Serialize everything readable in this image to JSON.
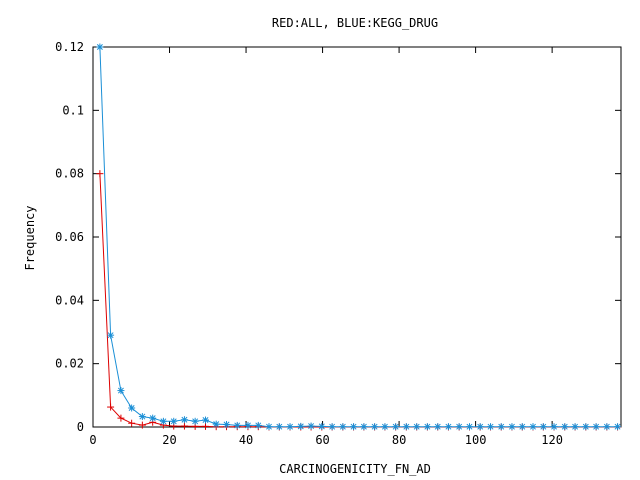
{
  "chart_data": {
    "type": "line",
    "title": "RED:ALL, BLUE:KEGG_DRUG",
    "xlabel": "CARCINOGENICITY_FN_AD",
    "ylabel": "Frequency",
    "xlim": [
      0,
      138
    ],
    "ylim": [
      0,
      0.12
    ],
    "x_ticks": [
      0,
      20,
      40,
      60,
      80,
      100,
      120
    ],
    "y_ticks": [
      0,
      0.02,
      0.04,
      0.06,
      0.08,
      0.1,
      0.12
    ],
    "x_tick_labels": [
      "0",
      "20",
      "40",
      "60",
      "80",
      "100",
      "120"
    ],
    "y_tick_labels": [
      "0",
      "0.02",
      "0.04",
      "0.06",
      "0.08",
      "0.1",
      "0.12"
    ],
    "series": [
      {
        "color": "#dd0000",
        "marker": "plus",
        "x": [
          1.8,
          4.6,
          7.3,
          10.1,
          12.9,
          15.6,
          18.4,
          21.1,
          23.9,
          26.7,
          29.4,
          32.2,
          34.9,
          37.7,
          40.5,
          43.2,
          46.0,
          48.7,
          51.5,
          54.3,
          57.0,
          59.8,
          62.5,
          65.3,
          68.1,
          70.8,
          73.6,
          76.3,
          79.1,
          81.9,
          84.6,
          87.4,
          90.1,
          92.9,
          95.7,
          98.4,
          101.2,
          103.9,
          106.7,
          109.5,
          112.2,
          115.0,
          117.7,
          120.5,
          123.3,
          126.0,
          128.8,
          131.5,
          134.3,
          137.1
        ],
        "values": [
          0.08,
          0.0063,
          0.0028,
          0.0012,
          0.0006,
          0.0015,
          0.0006,
          0.0003,
          0.0003,
          0.0002,
          0.0002,
          0.0001,
          0.0001,
          0.0001,
          0.0001,
          0.0001,
          0,
          0,
          0,
          0,
          0,
          0,
          0,
          0,
          0,
          0,
          0,
          0,
          0,
          0,
          0,
          0,
          0,
          0,
          0,
          0,
          0,
          0,
          0,
          0,
          0,
          0,
          0,
          0,
          0,
          0,
          0,
          0,
          0,
          0
        ]
      },
      {
        "color": "#1a8fd6",
        "marker": "star",
        "x": [
          1.8,
          4.6,
          7.3,
          10.1,
          12.9,
          15.6,
          18.4,
          21.1,
          23.9,
          26.7,
          29.4,
          32.2,
          34.9,
          37.7,
          40.5,
          43.2,
          46.0,
          48.7,
          51.5,
          54.3,
          57.0,
          59.8,
          62.5,
          65.3,
          68.1,
          70.8,
          73.6,
          76.3,
          79.1,
          81.9,
          84.6,
          87.4,
          90.1,
          92.9,
          95.7,
          98.4,
          101.2,
          103.9,
          106.7,
          109.5,
          112.2,
          115.0,
          117.7,
          120.5,
          123.3,
          126.0,
          128.8,
          131.5,
          134.3,
          137.1
        ],
        "values": [
          0.12,
          0.029,
          0.0115,
          0.006,
          0.0033,
          0.0028,
          0.0018,
          0.0018,
          0.0023,
          0.0018,
          0.0022,
          0.0009,
          0.0008,
          0.0005,
          0.0005,
          0.0005,
          0.0001,
          0.0001,
          0.0001,
          0.0002,
          0.0003,
          0.0002,
          0.0001,
          0.0001,
          0.0001,
          0.0001,
          0.0001,
          0.0001,
          0.0001,
          0.0001,
          0.0001,
          0.0001,
          0.0001,
          0.0001,
          0.0001,
          0.0001,
          0.0001,
          0.0001,
          0.0001,
          0.0001,
          0.0001,
          0.0001,
          0.0001,
          0.0001,
          0.0001,
          0.0001,
          0.0001,
          0.0001,
          0.0001,
          0.0001
        ]
      }
    ]
  }
}
